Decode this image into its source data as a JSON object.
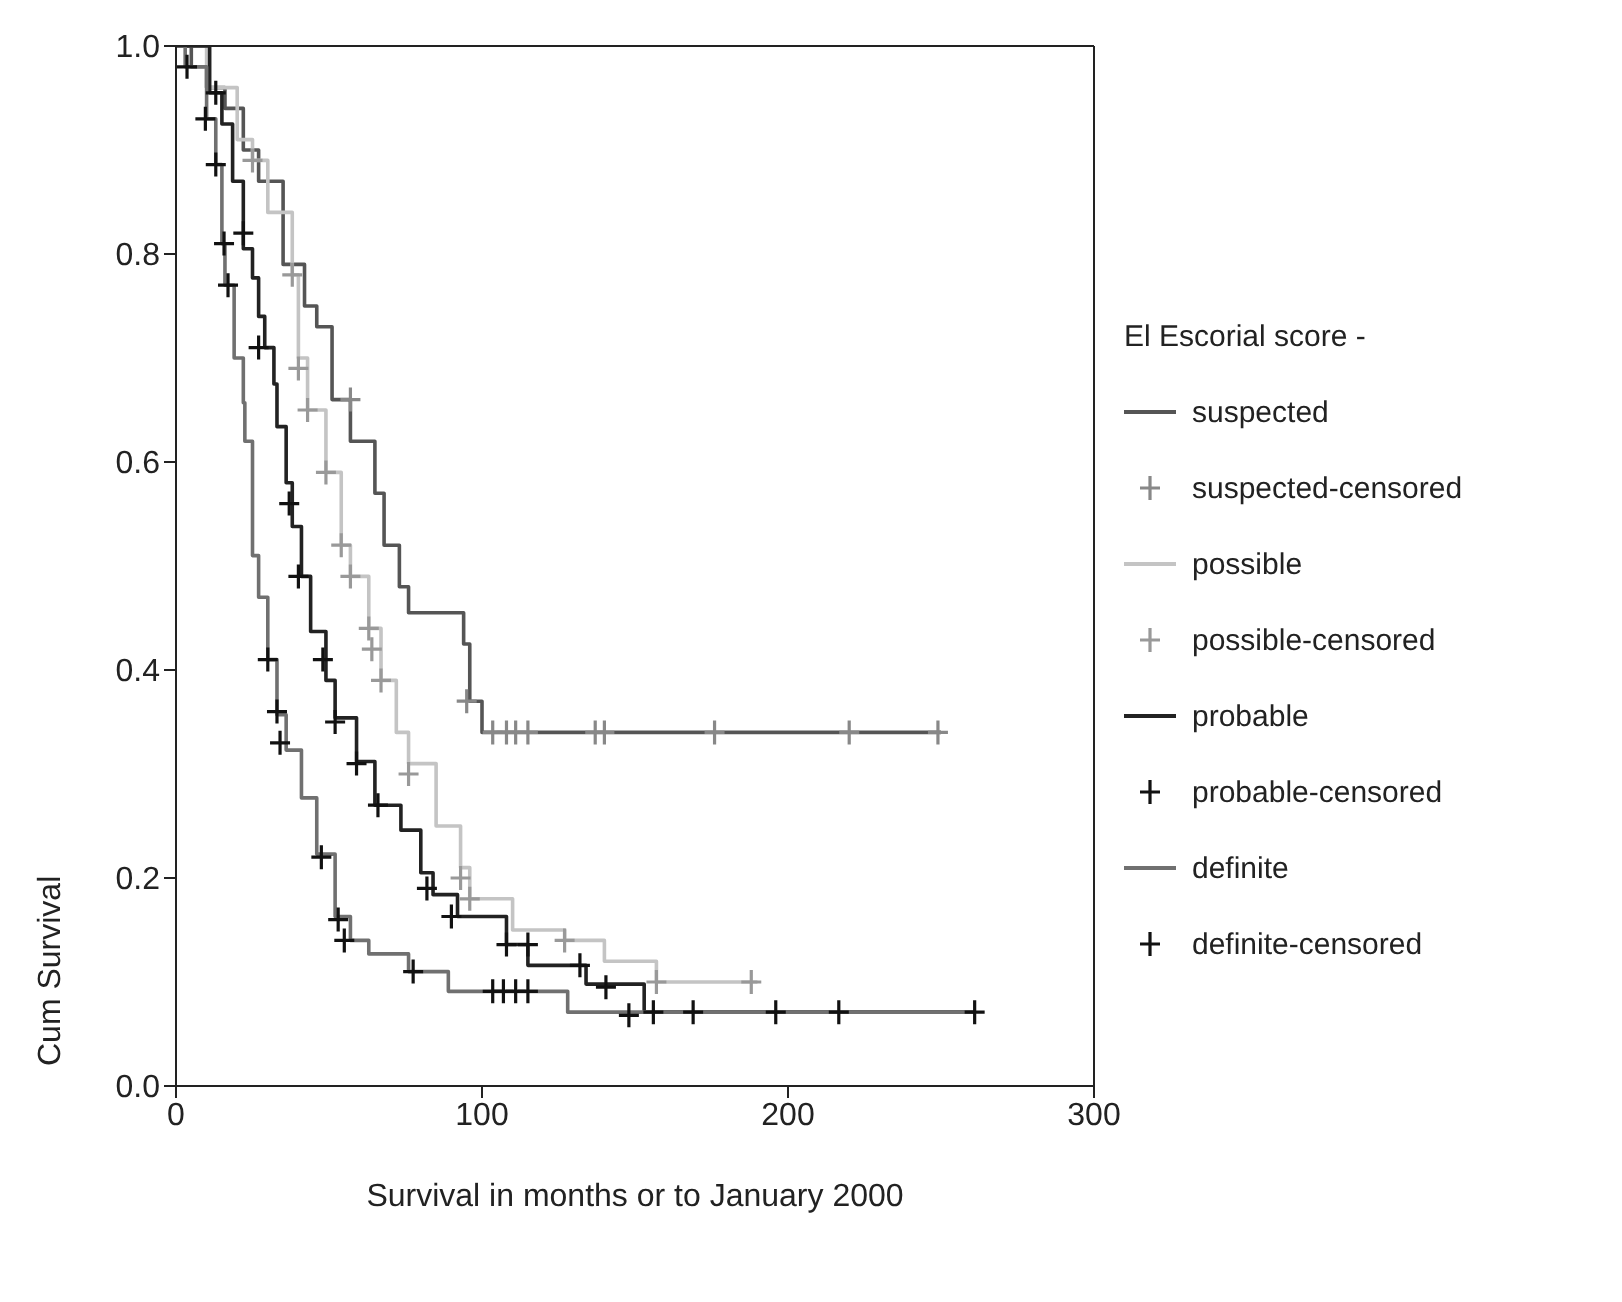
{
  "chart_data": {
    "type": "step",
    "xlabel": "Survival in months or to January 2000",
    "ylabel": "Cum Survival",
    "legend_title": "El Escorial score -",
    "legend": "right",
    "xlim": [
      0,
      300
    ],
    "xticks": [
      0,
      100,
      200,
      300
    ],
    "ylim": [
      0,
      1
    ],
    "yticks": [
      {
        "value": 0,
        "label": "0.0"
      },
      0.2,
      0.4,
      0.6,
      0.8,
      {
        "value": 1,
        "label": "1.0"
      }
    ],
    "series": [
      {
        "name": "suspected",
        "color": "#555555",
        "marker": "none",
        "x": [
          0,
          5,
          10,
          16,
          22,
          27,
          35,
          42,
          46,
          51,
          57,
          65,
          68,
          73,
          76,
          90,
          94,
          96,
          100,
          250
        ],
        "values": [
          1,
          0.98,
          0.96,
          0.94,
          0.9,
          0.87,
          0.79,
          0.75,
          0.73,
          0.66,
          0.62,
          0.57,
          0.52,
          0.48,
          0.455,
          0.455,
          0.425,
          0.37,
          0.34,
          0.34
        ]
      },
      {
        "name": "suspected-censored",
        "type": "scatter",
        "color": "#888888",
        "marker": "cross",
        "x": [
          57,
          95,
          103.5,
          108,
          111,
          115,
          137,
          140,
          176,
          220,
          249
        ],
        "values": [
          0.66,
          0.37,
          0.34,
          0.34,
          0.34,
          0.34,
          0.34,
          0.34,
          0.34,
          0.34,
          0.34
        ]
      },
      {
        "name": "possible",
        "color": "#c4c4c4",
        "marker": "none",
        "x": [
          0,
          10,
          20,
          25,
          30,
          38,
          40,
          43,
          49,
          54,
          57,
          63,
          67,
          72,
          76,
          85,
          93,
          96,
          110,
          127,
          140,
          157,
          190
        ],
        "values": [
          1,
          0.96,
          0.91,
          0.89,
          0.84,
          0.78,
          0.7,
          0.65,
          0.59,
          0.52,
          0.49,
          0.44,
          0.39,
          0.34,
          0.31,
          0.25,
          0.21,
          0.18,
          0.15,
          0.14,
          0.12,
          0.1,
          0.1
        ]
      },
      {
        "name": "possible-censored",
        "type": "scatter",
        "color": "#999999",
        "marker": "cross",
        "x": [
          25,
          38,
          40,
          43,
          49,
          54,
          57,
          63,
          64,
          67,
          76,
          93,
          96,
          127,
          157,
          188
        ],
        "values": [
          0.89,
          0.78,
          0.69,
          0.65,
          0.59,
          0.52,
          0.49,
          0.44,
          0.42,
          0.39,
          0.3,
          0.2,
          0.18,
          0.14,
          0.1,
          0.1
        ]
      },
      {
        "name": "probable",
        "color": "#222222",
        "marker": "none",
        "x": [
          0,
          11,
          15,
          18.5,
          22,
          25,
          27,
          29,
          32,
          33,
          36,
          38,
          41,
          44,
          49,
          52,
          59,
          65,
          73.5,
          80,
          84,
          92,
          108,
          115,
          134,
          153,
          261
        ],
        "values": [
          1,
          0.955,
          0.925,
          0.87,
          0.805,
          0.777,
          0.74,
          0.71,
          0.675,
          0.634,
          0.58,
          0.538,
          0.49,
          0.437,
          0.39,
          0.354,
          0.312,
          0.27,
          0.246,
          0.205,
          0.184,
          0.163,
          0.136,
          0.116,
          0.098,
          0.071,
          0.071
        ]
      },
      {
        "name": "probable-censored",
        "type": "scatter",
        "color": "#111111",
        "marker": "cross",
        "x": [
          13,
          22,
          27,
          37,
          40,
          48,
          52,
          59,
          66,
          82,
          90,
          108,
          115,
          132,
          140.5,
          148,
          156,
          169,
          196,
          216.6,
          261
        ],
        "values": [
          0.955,
          0.82,
          0.71,
          0.56,
          0.49,
          0.41,
          0.35,
          0.31,
          0.27,
          0.19,
          0.163,
          0.136,
          0.136,
          0.116,
          0.095,
          0.068,
          0.071,
          0.071,
          0.071,
          0.071,
          0.071
        ]
      },
      {
        "name": "definite",
        "color": "#707070",
        "marker": "none",
        "x": [
          0,
          3,
          10,
          13,
          15,
          16,
          19,
          22,
          22.5,
          25,
          27,
          30,
          33,
          36,
          41,
          46,
          52,
          57,
          63,
          76,
          89,
          128,
          261
        ],
        "values": [
          1,
          0.98,
          0.93,
          0.886,
          0.81,
          0.77,
          0.7,
          0.657,
          0.62,
          0.51,
          0.47,
          0.41,
          0.357,
          0.323,
          0.277,
          0.223,
          0.163,
          0.14,
          0.127,
          0.11,
          0.091,
          0.071,
          0.071
        ]
      },
      {
        "name": "definite-censored",
        "type": "scatter",
        "color": "#111111",
        "marker": "cross",
        "x": [
          3.6,
          9.6,
          13,
          15.7,
          17,
          30,
          33,
          34,
          47.5,
          53,
          55,
          77.5,
          103.5,
          107,
          111,
          115
        ],
        "values": [
          0.98,
          0.93,
          0.886,
          0.81,
          0.77,
          0.41,
          0.36,
          0.33,
          0.22,
          0.16,
          0.14,
          0.11,
          0.091,
          0.091,
          0.091,
          0.091
        ]
      }
    ]
  }
}
